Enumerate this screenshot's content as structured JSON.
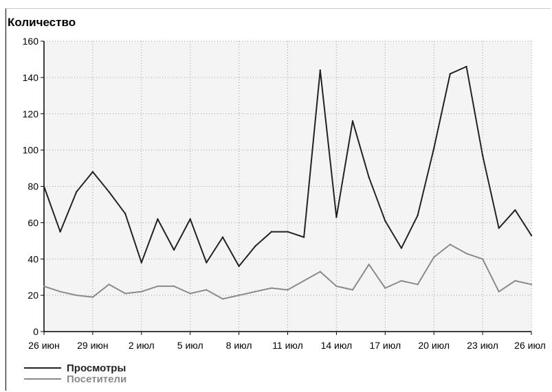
{
  "chart_data": {
    "type": "line",
    "ylabel": "Количество",
    "ylim": [
      0,
      160
    ],
    "yticks": [
      0,
      20,
      40,
      60,
      80,
      100,
      120,
      140,
      160
    ],
    "xtick_labels": [
      "26 июн",
      "29 июн",
      "2 июл",
      "5 июл",
      "8 июл",
      "11 июл",
      "14 июл",
      "17 июл",
      "20 июл",
      "23 июл",
      "26 июл"
    ],
    "x": [
      "26 июн",
      "27 июн",
      "28 июн",
      "29 июн",
      "30 июн",
      "1 июл",
      "2 июл",
      "3 июл",
      "4 июл",
      "5 июл",
      "6 июл",
      "7 июл",
      "8 июл",
      "9 июл",
      "10 июл",
      "11 июл",
      "12 июл",
      "13 июл",
      "14 июл",
      "15 июл",
      "16 июл",
      "17 июл",
      "18 июл",
      "19 июл",
      "20 июл",
      "21 июл",
      "22 июл",
      "23 июл",
      "24 июл",
      "25 июл",
      "26 июл"
    ],
    "grid": true,
    "legend_position": "bottom-left",
    "series": [
      {
        "name": "Просмотры",
        "color": "#222222",
        "values": [
          80,
          55,
          77,
          88,
          77,
          65,
          38,
          62,
          45,
          62,
          38,
          52,
          36,
          47,
          55,
          55,
          52,
          144,
          63,
          116,
          85,
          61,
          46,
          64,
          101,
          142,
          146,
          97,
          57,
          67,
          53
        ]
      },
      {
        "name": "Посетители",
        "color": "#8a8a8a",
        "values": [
          25,
          22,
          20,
          19,
          26,
          21,
          22,
          25,
          25,
          21,
          23,
          18,
          20,
          22,
          24,
          23,
          28,
          33,
          25,
          23,
          37,
          24,
          28,
          26,
          41,
          48,
          43,
          40,
          22,
          28,
          26
        ]
      }
    ]
  }
}
